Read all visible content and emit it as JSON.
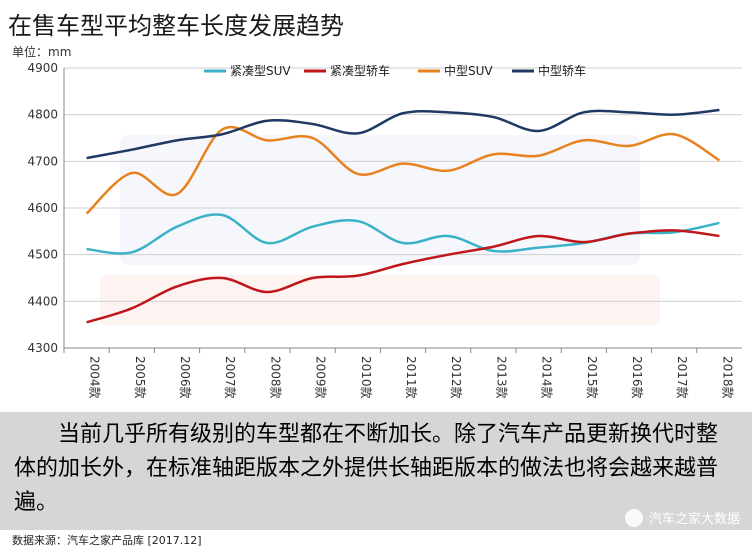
{
  "title": "在售车型平均整车长度发展趋势",
  "caption": "当前几乎所有级别的车型都在不断加长。除了汽车产品更新换代时整体的加长外，在标准轴距版本之外提供长轴距版本的做法也将会越来越普遍。",
  "source": "数据来源：汽车之家产品库 [2017.12]",
  "watermark": "汽车之家大数据",
  "chart_data": {
    "type": "line",
    "unit_label": "单位：mm",
    "ylim": [
      4300,
      4900
    ],
    "yticks": [
      4300,
      4400,
      4500,
      4600,
      4700,
      4800,
      4900
    ],
    "categories": [
      "2004款",
      "2005款",
      "2006款",
      "2007款",
      "2008款",
      "2009款",
      "2010款",
      "2011款",
      "2012款",
      "2013款",
      "2014款",
      "2015款",
      "2016款",
      "2017款",
      "2018款"
    ],
    "legend_position": "top",
    "series": [
      {
        "name": "紧凑型SUV",
        "color": "#3bb1c8",
        "values": [
          4512,
          4505,
          4560,
          4585,
          4525,
          4560,
          4572,
          4525,
          4540,
          4508,
          4515,
          4525,
          4545,
          4548,
          4568
        ]
      },
      {
        "name": "紧凑型轿车",
        "color": "#c0161a",
        "values": [
          4355,
          4385,
          4432,
          4450,
          4420,
          4450,
          4455,
          4480,
          4500,
          4517,
          4540,
          4527,
          4545,
          4552,
          4540
        ]
      },
      {
        "name": "中型SUV",
        "color": "#e8821e",
        "values": [
          4588,
          4675,
          4630,
          4768,
          4745,
          4750,
          4673,
          4695,
          4680,
          4715,
          4712,
          4745,
          4733,
          4758,
          4702
        ]
      },
      {
        "name": "中型轿车",
        "color": "#1f3864",
        "values": [
          4707,
          4725,
          4745,
          4758,
          4787,
          4780,
          4760,
          4803,
          4805,
          4795,
          4765,
          4805,
          4805,
          4800,
          4810
        ]
      }
    ]
  }
}
